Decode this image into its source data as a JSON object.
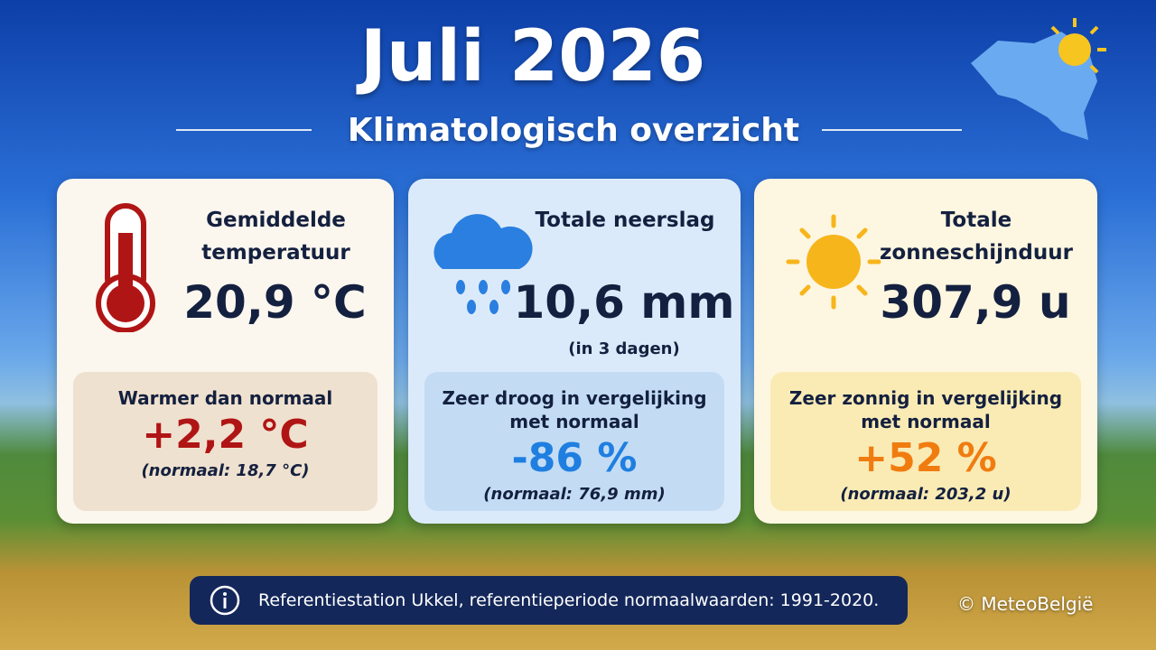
{
  "header": {
    "title": "Juli 2026",
    "subtitle": "Klimatologisch overzicht"
  },
  "cards": [
    {
      "title": "Gemiddelde temperatuur",
      "value": "20,9 °C",
      "comparison": "Warmer dan normaal",
      "deviation": "+2,2 °C",
      "normal": "(normaal: 18,7 °C)"
    },
    {
      "title": "Totale neerslag",
      "value": "10,6 mm",
      "note": "(in 3 dagen)",
      "comparison": "Zeer droog in vergelijking met normaal",
      "deviation": "-86 %",
      "normal": "(normaal: 76,9 mm)"
    },
    {
      "title": "Totale zonneschijnduur",
      "value": "307,9 u",
      "comparison": "Zeer zonnig in vergelijking met normaal",
      "deviation": "+52 %",
      "normal": "(normaal: 203,2 u)"
    }
  ],
  "footer": {
    "note": "Referentiestation Ukkel, referentieperiode normaalwaarden: 1991-2020.",
    "credit": "© MeteoBelgië"
  }
}
